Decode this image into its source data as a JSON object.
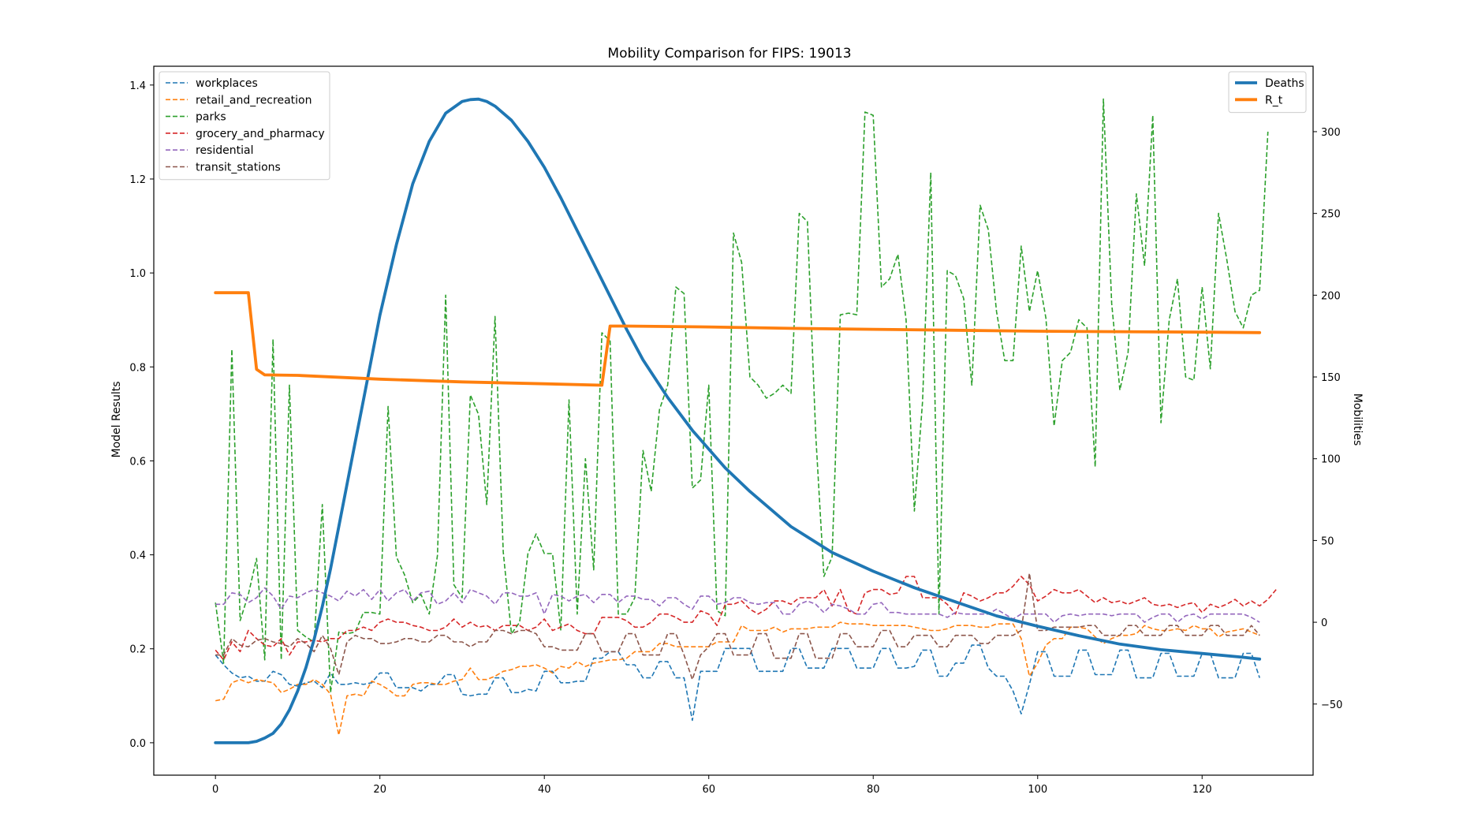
{
  "chart_data": {
    "type": "line",
    "title": "Mobility Comparison for FIPS: 19013",
    "ylabel_left": "Model Results",
    "ylabel_right": "Mobilities",
    "xlabel": "",
    "xlim": [
      -7.5,
      133.5
    ],
    "ylim_left": [
      -0.069,
      1.44
    ],
    "ylim_right": [
      -93.5,
      340
    ],
    "x_ticks": [
      0,
      20,
      40,
      60,
      80,
      100,
      120
    ],
    "y_left_ticks": [
      "0.0",
      "0.2",
      "0.4",
      "0.6",
      "0.8",
      "1.0",
      "1.2",
      "1.4"
    ],
    "y_right_ticks": [
      "−50",
      "0",
      "50",
      "100",
      "150",
      "200",
      "250",
      "300"
    ],
    "grid": false,
    "legend_left_placement": "upper left",
    "legend_right_placement": "upper right",
    "model_series": [
      {
        "name": "Deaths",
        "color": "#1f77b4",
        "axis": "left",
        "linestyle": "solid",
        "x": [
          0,
          4,
          5,
          6,
          7,
          8,
          9,
          10,
          11,
          12,
          13,
          14,
          15,
          16,
          17,
          18,
          20,
          22,
          24,
          26,
          28,
          30,
          31,
          32,
          33,
          34,
          36,
          38,
          40,
          42,
          44,
          46,
          48,
          50,
          52,
          55,
          58,
          60,
          62,
          65,
          70,
          75,
          80,
          85,
          90,
          95,
          100,
          105,
          110,
          115,
          120,
          125,
          127
        ],
        "y": [
          0.0,
          0.0,
          0.003,
          0.01,
          0.02,
          0.04,
          0.07,
          0.11,
          0.16,
          0.22,
          0.29,
          0.37,
          0.46,
          0.55,
          0.64,
          0.73,
          0.91,
          1.06,
          1.19,
          1.28,
          1.34,
          1.365,
          1.369,
          1.37,
          1.365,
          1.355,
          1.325,
          1.28,
          1.225,
          1.16,
          1.09,
          1.02,
          0.95,
          0.88,
          0.815,
          0.735,
          0.665,
          0.625,
          0.585,
          0.535,
          0.46,
          0.405,
          0.365,
          0.33,
          0.3,
          0.27,
          0.248,
          0.228,
          0.21,
          0.198,
          0.19,
          0.182,
          0.178
        ]
      },
      {
        "name": "R_t",
        "color": "#ff7f0e",
        "axis": "left",
        "linestyle": "solid",
        "x": [
          0,
          4,
          5,
          6,
          10,
          20,
          30,
          40,
          47,
          48,
          50,
          60,
          70,
          80,
          90,
          100,
          110,
          120,
          127
        ],
        "y": [
          0.958,
          0.958,
          0.795,
          0.783,
          0.782,
          0.774,
          0.768,
          0.764,
          0.761,
          0.887,
          0.887,
          0.885,
          0.882,
          0.88,
          0.878,
          0.876,
          0.875,
          0.874,
          0.873
        ]
      }
    ],
    "mobility_series": [
      {
        "name": "workplaces",
        "color": "#1f77b4",
        "axis": "right",
        "linestyle": "dashed",
        "y": [
          -20,
          -26,
          -31,
          -34,
          -33,
          -36,
          -36,
          -30,
          -32,
          -38,
          -39,
          -37,
          -36,
          -40,
          -31,
          -38,
          -38,
          -37,
          -38,
          -37,
          -31,
          -31,
          -40,
          -40,
          -40,
          -42,
          -38,
          -38,
          -32,
          -32,
          -44,
          -45,
          -44,
          -44,
          -34,
          -34,
          -43,
          -43,
          -41,
          -42,
          -30,
          -30,
          -37,
          -37,
          -36,
          -36,
          -22,
          -22,
          -18,
          -18,
          -26,
          -26,
          -34,
          -34,
          -24,
          -24,
          -34,
          -34,
          -60,
          -30,
          -30,
          -30,
          -16,
          -16,
          -16,
          -16,
          -30,
          -30,
          -30,
          -30,
          -16,
          -16,
          -28,
          -28,
          -28,
          -16,
          -16,
          -16,
          -28,
          -28,
          -28,
          -16,
          -16,
          -28,
          -28,
          -27,
          -17,
          -17,
          -33,
          -33,
          -25,
          -25,
          -14,
          -14,
          -28,
          -33,
          -33,
          -42,
          -56,
          -38,
          -18,
          -18,
          -33,
          -33,
          -33,
          -17,
          -17,
          -32,
          -32,
          -32,
          -17,
          -17,
          -34,
          -34,
          -34,
          -19,
          -19,
          -33,
          -33,
          -33,
          -19,
          -19,
          -34,
          -34,
          -34,
          -19,
          -19,
          -34
        ]
      },
      {
        "name": "retail_and_recreation",
        "color": "#ff7f0e",
        "axis": "right",
        "linestyle": "dashed",
        "y": [
          -48,
          -47,
          -37,
          -35,
          -37,
          -35,
          -36,
          -37,
          -43,
          -41,
          -38,
          -38,
          -35,
          -38,
          -44,
          -69,
          -45,
          -44,
          -45,
          -36,
          -38,
          -41,
          -45,
          -45,
          -38,
          -37,
          -37,
          -38,
          -38,
          -36,
          -35,
          -28,
          -35,
          -35,
          -33,
          -30,
          -29,
          -27,
          -27,
          -26,
          -28,
          -31,
          -27,
          -28,
          -24,
          -27,
          -25,
          -24,
          -23,
          -23,
          -22,
          -18,
          -18,
          -18,
          -13,
          -13,
          -15,
          -15,
          -15,
          -15,
          -15,
          -12,
          -12,
          -12,
          -2,
          -5,
          -5,
          -5,
          -3,
          -6,
          -4,
          -4,
          -4,
          -3,
          -3,
          -3,
          0,
          -1,
          -1,
          -1,
          -2,
          -2,
          -2,
          -2,
          -2,
          -3,
          -4,
          -5,
          -5,
          -4,
          -2,
          -2,
          -2,
          -3,
          -3,
          -1,
          -1,
          -1,
          -10,
          -33,
          -25,
          -14,
          -10,
          -10,
          -3,
          -3,
          -4,
          -9,
          -13,
          -10,
          -8,
          -8,
          -7,
          -2,
          -4,
          -5,
          -5,
          -4,
          -5,
          -2,
          -4,
          -4,
          -9,
          -6,
          -5,
          -4,
          -6,
          -8
        ]
      },
      {
        "name": "parks",
        "color": "#2ca02c",
        "axis": "right",
        "linestyle": "dashed",
        "y": [
          12,
          -25,
          167,
          1,
          17,
          39,
          -23,
          173,
          -23,
          145,
          -5,
          -9,
          -12,
          72,
          -43,
          -6,
          -7,
          -6,
          6,
          6,
          5,
          132,
          40,
          29,
          12,
          17,
          5,
          41,
          200,
          23,
          15,
          139,
          127,
          72,
          187,
          43,
          -7,
          0,
          42,
          54,
          42,
          42,
          -5,
          136,
          5,
          100,
          32,
          177,
          172,
          5,
          5,
          15,
          105,
          80,
          130,
          145,
          205,
          201,
          82,
          87,
          145,
          7,
          4,
          238,
          220,
          150,
          145,
          137,
          140,
          145,
          140,
          250,
          245,
          115,
          28,
          40,
          188,
          189,
          188,
          312,
          310,
          205,
          210,
          225,
          185,
          68,
          135,
          275,
          5,
          215,
          212,
          198,
          145,
          255,
          240,
          190,
          160,
          160,
          230,
          190,
          215,
          186,
          120,
          160,
          165,
          185,
          180,
          95,
          320,
          195,
          142,
          165,
          262,
          218,
          310,
          122,
          185,
          210,
          150,
          148,
          205,
          155,
          250,
          222,
          190,
          180,
          200,
          203,
          300
        ]
      },
      {
        "name": "grocery_and_pharmacy",
        "color": "#d62728",
        "axis": "right",
        "linestyle": "dashed",
        "y": [
          -17,
          -23,
          -12,
          -18,
          -5,
          -10,
          -14,
          -15,
          -10,
          -20,
          -12,
          -12,
          -11,
          -12,
          -10,
          -10,
          -5,
          -5,
          -3,
          -5,
          0,
          2,
          0,
          0,
          -2,
          -3,
          -5,
          -5,
          -3,
          2,
          -3,
          0,
          -3,
          -2,
          -5,
          -2,
          -2,
          -2,
          -5,
          -3,
          2,
          -5,
          -3,
          -1,
          -5,
          -7,
          -7,
          3,
          3,
          3,
          1,
          -3,
          -3,
          0,
          5,
          5,
          3,
          0,
          0,
          7,
          5,
          -2,
          11,
          11,
          13,
          8,
          5,
          8,
          13,
          13,
          11,
          15,
          15,
          15,
          20,
          10,
          20,
          7,
          5,
          18,
          20,
          20,
          17,
          18,
          28,
          28,
          15,
          15,
          15,
          11,
          5,
          18,
          16,
          13,
          15,
          18,
          18,
          22,
          28,
          23,
          13,
          16,
          20,
          18,
          18,
          20,
          16,
          12,
          15,
          12,
          13,
          11,
          13,
          15,
          11,
          10,
          11,
          9,
          11,
          12,
          6,
          11,
          9,
          11,
          14,
          10,
          13,
          10,
          14,
          20
        ]
      },
      {
        "name": "residential",
        "color": "#9467bd",
        "axis": "right",
        "linestyle": "dashed",
        "y": [
          11,
          11,
          18,
          17,
          12,
          15,
          21,
          16,
          8,
          16,
          15,
          18,
          20,
          18,
          16,
          13,
          19,
          16,
          20,
          14,
          20,
          13,
          18,
          20,
          13,
          18,
          19,
          11,
          13,
          18,
          12,
          20,
          18,
          16,
          11,
          18,
          18,
          16,
          16,
          18,
          5,
          17,
          16,
          13,
          16,
          17,
          12,
          17,
          17,
          12,
          16,
          16,
          14,
          14,
          10,
          15,
          15,
          11,
          8,
          16,
          16,
          11,
          12,
          15,
          15,
          12,
          11,
          12,
          12,
          5,
          5,
          11,
          13,
          11,
          6,
          11,
          10,
          8,
          5,
          5,
          11,
          12,
          6,
          6,
          5,
          5,
          5,
          5,
          5,
          3,
          6,
          5,
          5,
          5,
          5,
          8,
          5,
          2,
          5,
          5,
          5,
          5,
          0,
          4,
          5,
          4,
          5,
          5,
          5,
          4,
          5,
          5,
          5,
          0,
          3,
          5,
          5,
          0,
          4,
          5,
          2,
          5,
          5,
          5,
          5,
          5,
          3,
          0
        ]
      },
      {
        "name": "transit_stations",
        "color": "#8c564b",
        "axis": "right",
        "linestyle": "dashed",
        "y": [
          -20,
          -20,
          -10,
          -14,
          -15,
          -11,
          -10,
          -12,
          -13,
          -15,
          -10,
          -13,
          -18,
          -8,
          -16,
          -32,
          -12,
          -8,
          -10,
          -10,
          -13,
          -13,
          -12,
          -10,
          -10,
          -12,
          -12,
          -8,
          -8,
          -12,
          -12,
          -15,
          -12,
          -12,
          -5,
          -5,
          -7,
          -5,
          -5,
          -7,
          -15,
          -15,
          -17,
          -17,
          -17,
          -7,
          -7,
          -18,
          -18,
          -18,
          -7,
          -7,
          -20,
          -20,
          -20,
          -7,
          -7,
          -20,
          -35,
          -20,
          -15,
          -7,
          -7,
          -20,
          -20,
          -20,
          -7,
          -7,
          -22,
          -22,
          -22,
          -7,
          -7,
          -22,
          -22,
          -22,
          -7,
          -7,
          -15,
          -15,
          -15,
          -5,
          -5,
          -15,
          -15,
          -8,
          -8,
          -8,
          -15,
          -15,
          -8,
          -8,
          -8,
          -13,
          -13,
          -8,
          -8,
          -8,
          -5,
          30,
          -5,
          -5,
          -3,
          -3,
          -3,
          -3,
          -2,
          -2,
          -8,
          -8,
          -8,
          -2,
          -2,
          -8,
          -8,
          -8,
          -2,
          -2,
          -8,
          -8,
          -8,
          -2,
          -2,
          -8,
          -8,
          -8,
          -2,
          -8
        ]
      }
    ]
  }
}
